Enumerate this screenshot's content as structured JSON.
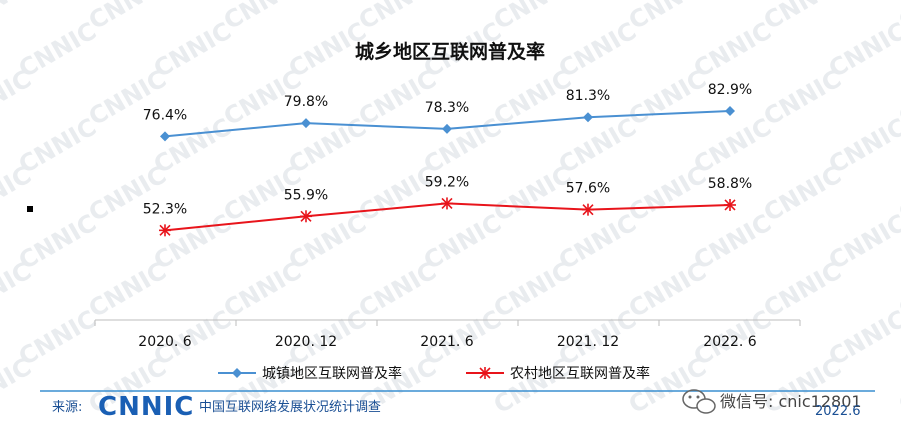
{
  "chart_data": {
    "type": "line",
    "title": "城乡地区互联网普及率",
    "categories": [
      "2020. 6",
      "2020. 12",
      "2021. 6",
      "2021. 12",
      "2022. 6"
    ],
    "series": [
      {
        "name": "城镇地区互联网普及率",
        "values": [
          76.4,
          79.8,
          78.3,
          81.3,
          82.9
        ],
        "labels": [
          "76.4%",
          "79.8%",
          "78.3%",
          "81.3%",
          "82.9%"
        ],
        "color": "#4a90d2",
        "marker": "diamond"
      },
      {
        "name": "农村地区互联网普及率",
        "values": [
          52.3,
          55.9,
          59.2,
          57.6,
          58.8
        ],
        "labels": [
          "52.3%",
          "55.9%",
          "59.2%",
          "57.6%",
          "58.8%"
        ],
        "color": "#e8141b",
        "marker": "asterisk"
      }
    ],
    "xlabel": "",
    "ylabel": "",
    "ylim": [
      0,
      100
    ],
    "grid": false,
    "legend": "bottom"
  },
  "footer": {
    "source_label": "来源:",
    "logo": "CNNIC",
    "source_text": "中国互联网络发展状况统计调查",
    "wechat": "微信号: cnic12801",
    "corner": "2022.6"
  },
  "watermark": "CNNIC"
}
